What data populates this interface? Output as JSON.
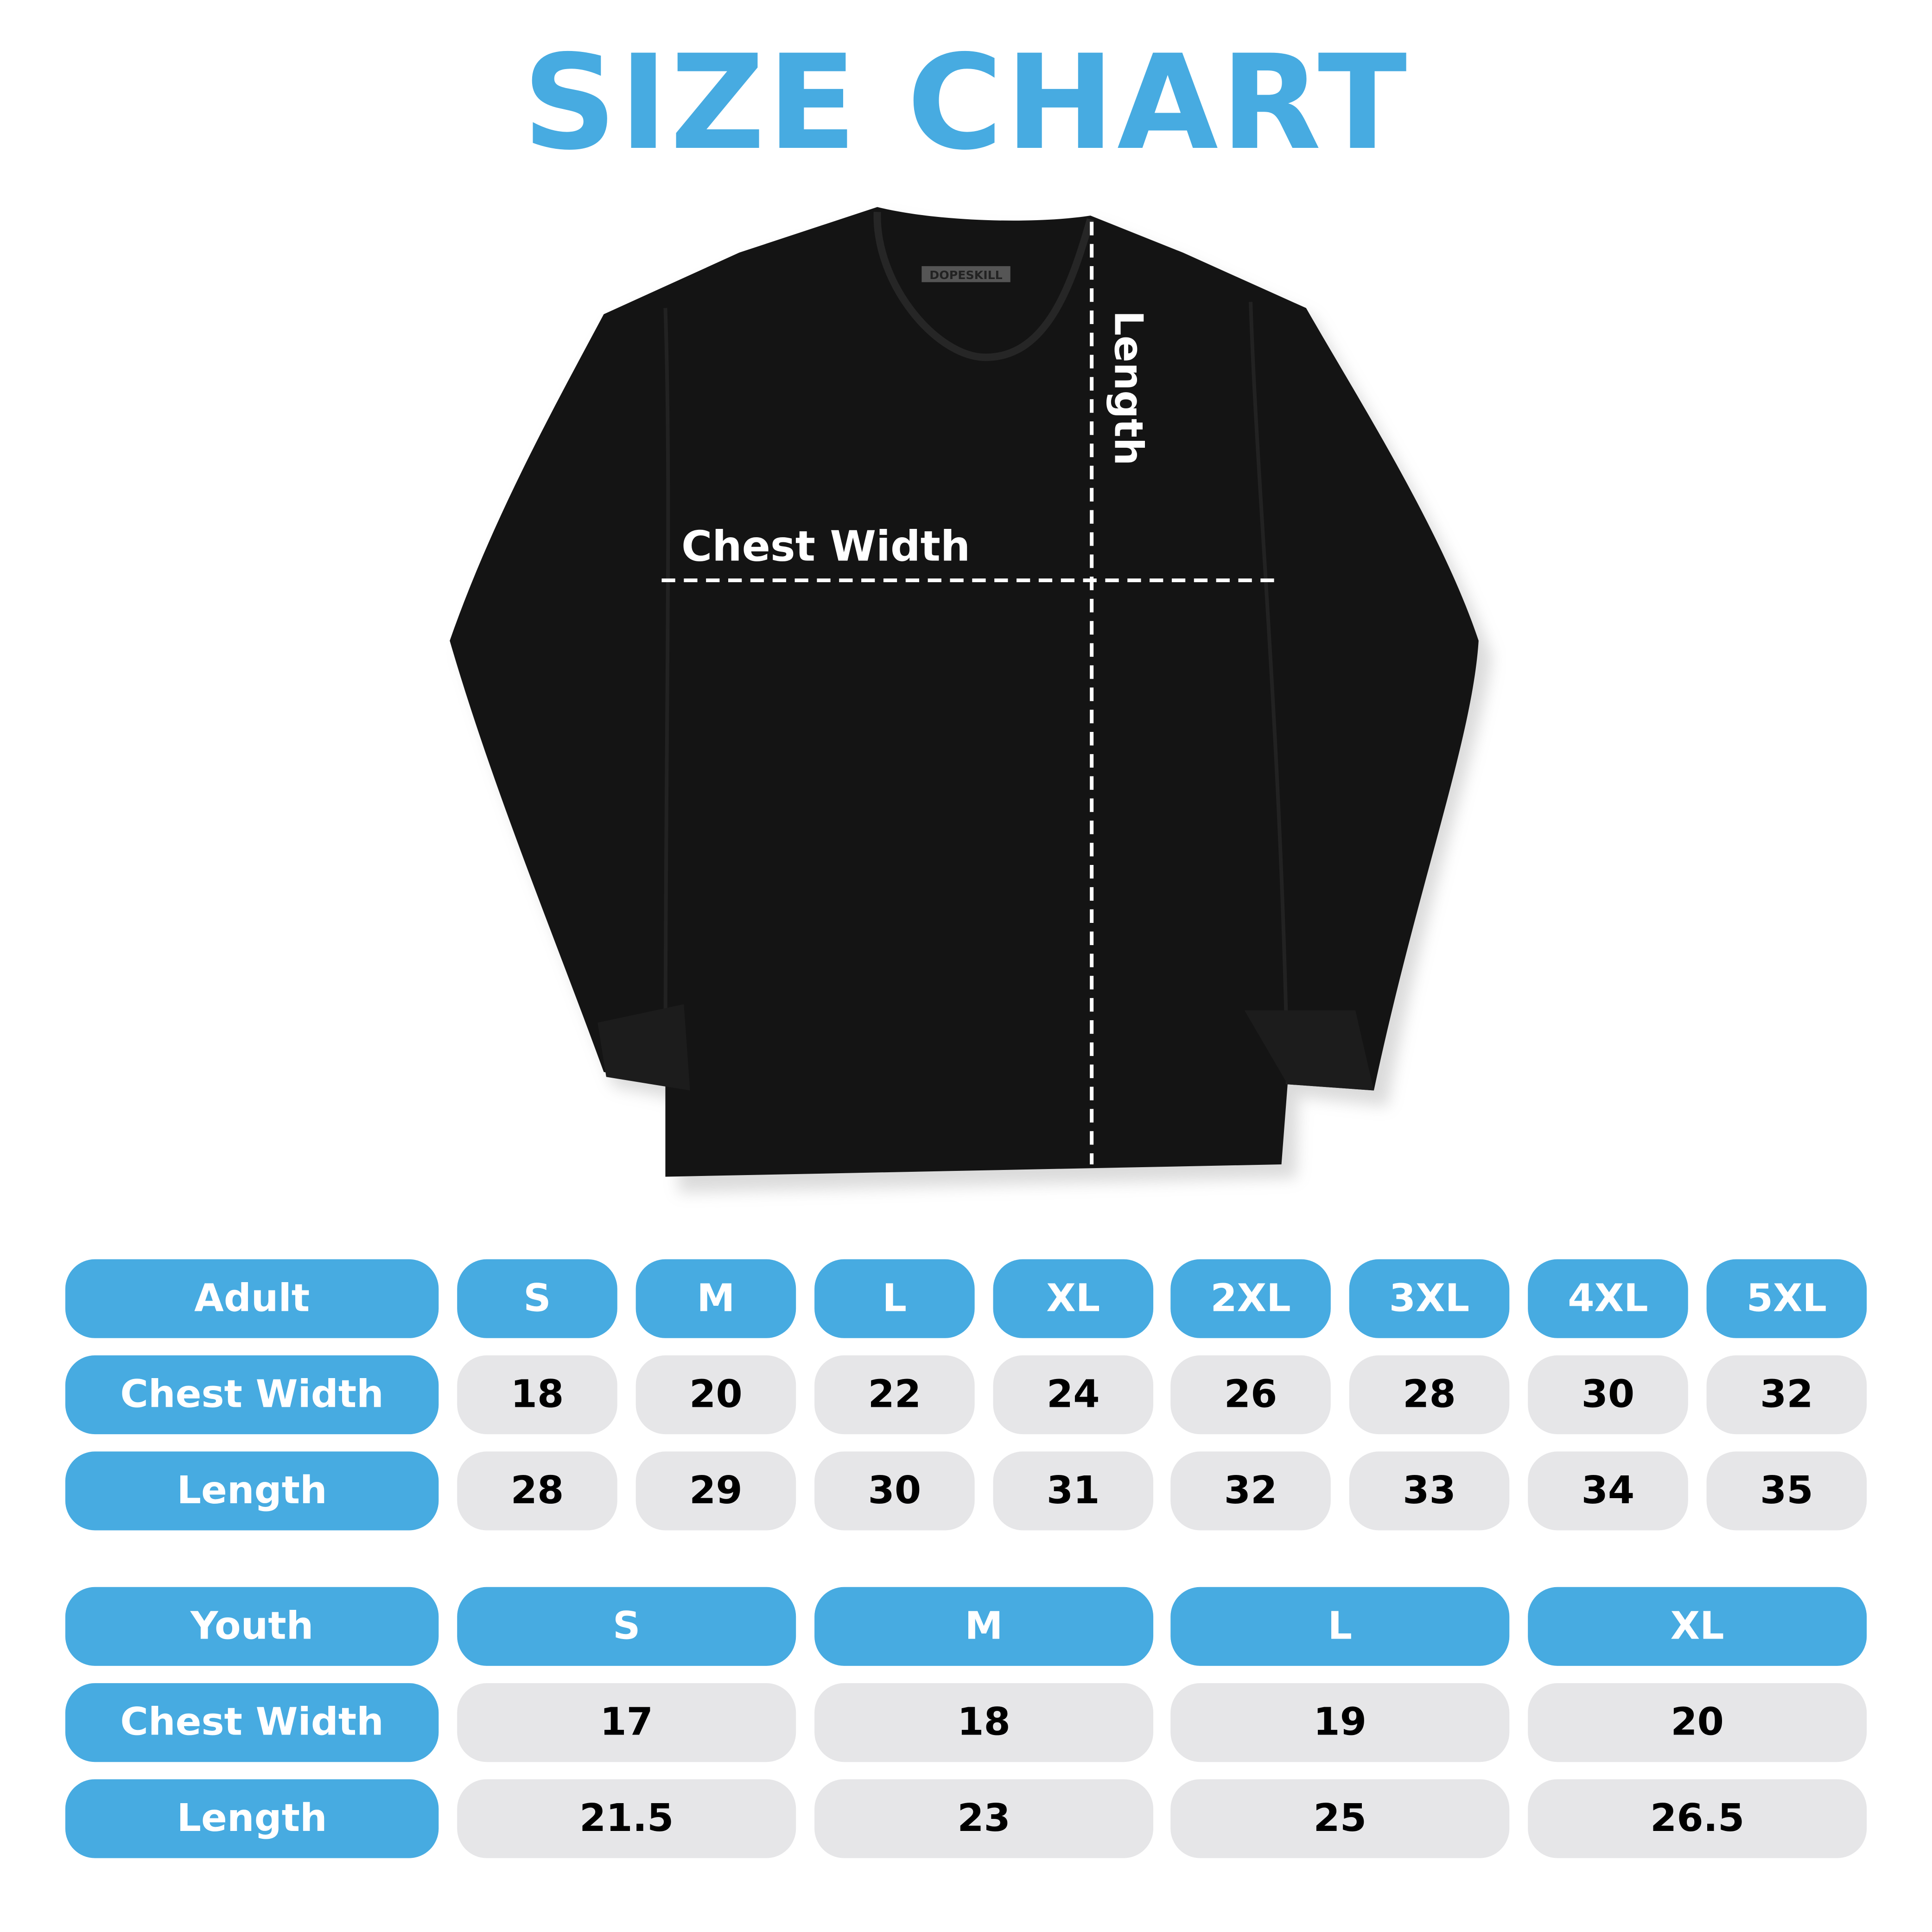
{
  "title": "SIZE CHART",
  "brand_tag": "DOPESKILL",
  "shirt_labels": {
    "chest_width": "Chest Width",
    "length": "Length"
  },
  "colors": {
    "accent": "#47ABE1",
    "cell_bg": "#E6E6E8",
    "shirt": "#141414"
  },
  "adult": {
    "header": "Adult",
    "sizes": [
      "S",
      "M",
      "L",
      "XL",
      "2XL",
      "3XL",
      "4XL",
      "5XL"
    ],
    "rows": [
      {
        "label": "Chest Width",
        "values": [
          "18",
          "20",
          "22",
          "24",
          "26",
          "28",
          "30",
          "32"
        ]
      },
      {
        "label": "Length",
        "values": [
          "28",
          "29",
          "30",
          "31",
          "32",
          "33",
          "34",
          "35"
        ]
      }
    ]
  },
  "youth": {
    "header": "Youth",
    "sizes": [
      "S",
      "M",
      "L",
      "XL"
    ],
    "rows": [
      {
        "label": "Chest Width",
        "values": [
          "17",
          "18",
          "19",
          "20"
        ]
      },
      {
        "label": "Length",
        "values": [
          "21.5",
          "23",
          "25",
          "26.5"
        ]
      }
    ]
  }
}
